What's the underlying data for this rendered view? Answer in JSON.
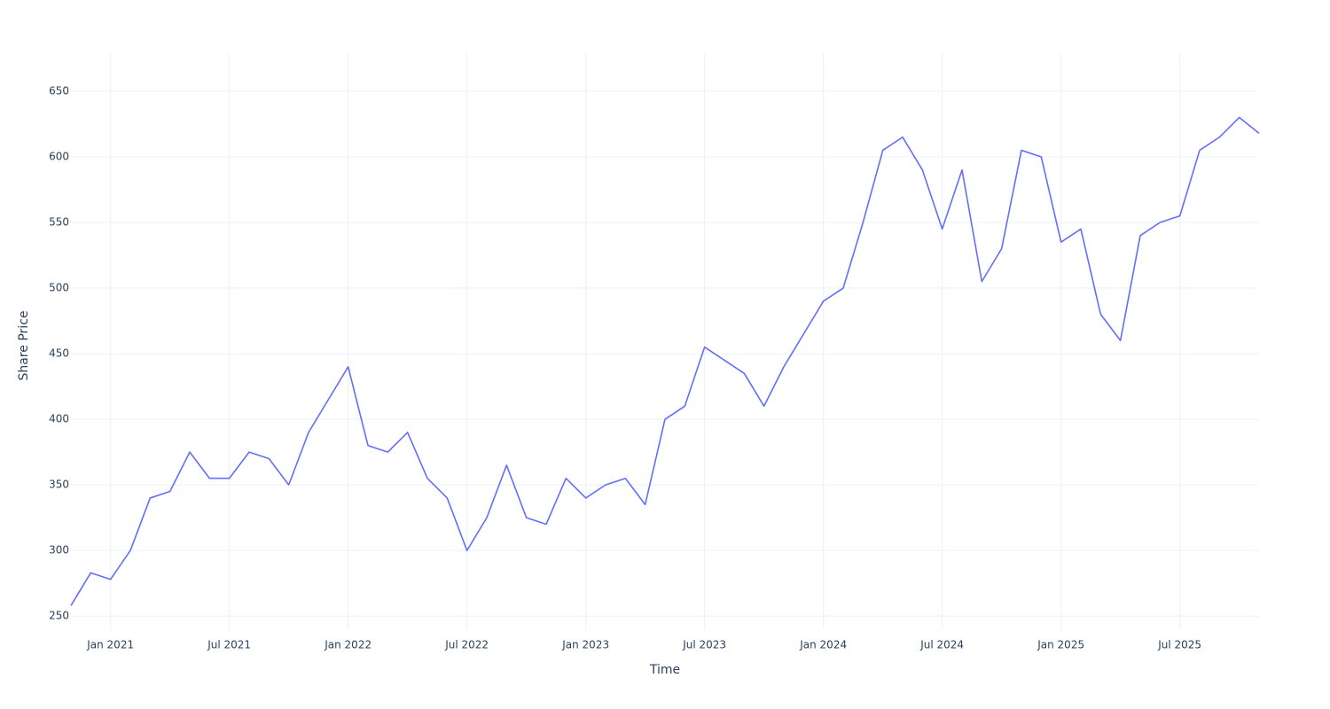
{
  "chart_data": {
    "type": "line",
    "x_label": "Time",
    "y_label": "Share Price",
    "x": [
      "2020-11",
      "2020-12",
      "2021-01",
      "2021-02",
      "2021-03",
      "2021-04",
      "2021-05",
      "2021-06",
      "2021-07",
      "2021-08",
      "2021-09",
      "2021-10",
      "2021-11",
      "2021-12",
      "2022-01",
      "2022-02",
      "2022-03",
      "2022-04",
      "2022-05",
      "2022-06",
      "2022-07",
      "2022-08",
      "2022-09",
      "2022-10",
      "2022-11",
      "2022-12",
      "2023-01",
      "2023-02",
      "2023-03",
      "2023-04",
      "2023-05",
      "2023-06",
      "2023-07",
      "2023-08",
      "2023-09",
      "2023-10",
      "2023-11",
      "2023-12",
      "2024-01",
      "2024-02",
      "2024-03",
      "2024-04",
      "2024-05",
      "2024-06",
      "2024-07",
      "2024-08",
      "2024-09",
      "2024-10",
      "2024-11",
      "2024-12",
      "2025-01",
      "2025-02",
      "2025-03",
      "2025-04",
      "2025-05",
      "2025-06",
      "2025-07",
      "2025-08",
      "2025-09",
      "2025-10",
      "2025-11"
    ],
    "series": [
      {
        "name": "Share Price",
        "color": "#636efa",
        "values": [
          258,
          283,
          278,
          300,
          340,
          345,
          375,
          355,
          355,
          375,
          370,
          350,
          390,
          415,
          440,
          380,
          375,
          390,
          355,
          340,
          300,
          325,
          365,
          325,
          320,
          355,
          340,
          350,
          355,
          335,
          400,
          410,
          455,
          445,
          435,
          410,
          440,
          465,
          490,
          500,
          550,
          605,
          615,
          590,
          545,
          590,
          505,
          530,
          605,
          600,
          535,
          545,
          480,
          460,
          540,
          550,
          555,
          605,
          615,
          630,
          618
        ]
      }
    ],
    "xlim": [
      "2020-11",
      "2025-11"
    ],
    "xticks": [
      {
        "value": "2021-01",
        "label": "Jan 2021"
      },
      {
        "value": "2021-07",
        "label": "Jul 2021"
      },
      {
        "value": "2022-01",
        "label": "Jan 2022"
      },
      {
        "value": "2022-07",
        "label": "Jul 2022"
      },
      {
        "value": "2023-01",
        "label": "Jan 2023"
      },
      {
        "value": "2023-07",
        "label": "Jul 2023"
      },
      {
        "value": "2024-01",
        "label": "Jan 2024"
      },
      {
        "value": "2024-07",
        "label": "Jul 2024"
      },
      {
        "value": "2025-01",
        "label": "Jan 2025"
      },
      {
        "value": "2025-07",
        "label": "Jul 2025"
      }
    ],
    "ylim": [
      240,
      679
    ],
    "yticks": [
      250,
      300,
      350,
      400,
      450,
      500,
      550,
      600,
      650
    ],
    "grid": true
  }
}
